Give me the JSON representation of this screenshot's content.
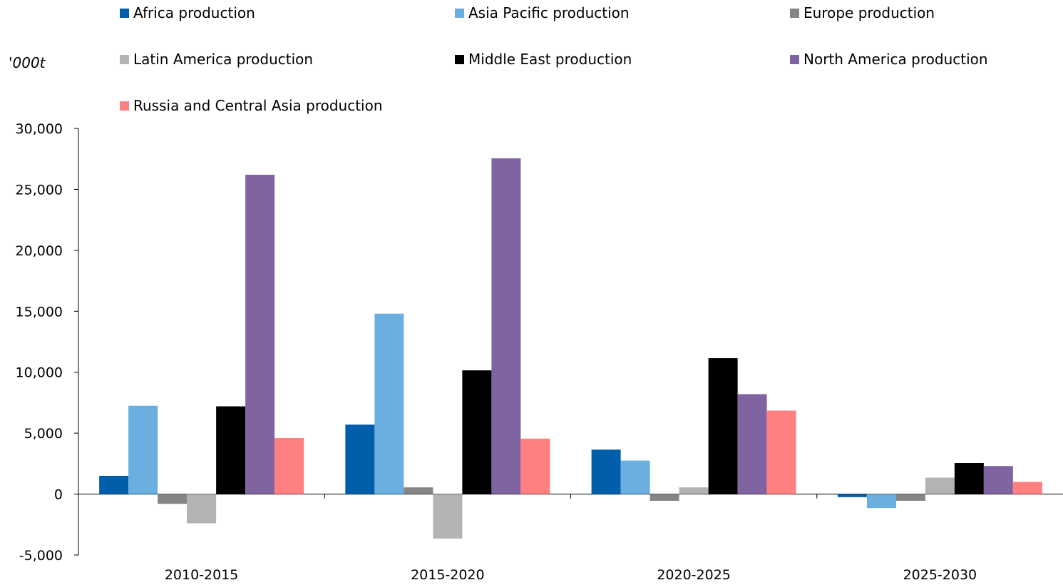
{
  "chart_data": {
    "type": "bar",
    "title": "",
    "xlabel": "",
    "ylabel": "'000t",
    "ylim": [
      -5000,
      30000
    ],
    "yticks": [
      -5000,
      0,
      5000,
      10000,
      15000,
      20000,
      25000,
      30000
    ],
    "ytick_labels": [
      "-5,000",
      "0",
      "5,000",
      "10,000",
      "15,000",
      "20,000",
      "25,000",
      "30,000"
    ],
    "grid": false,
    "legend_position": "top",
    "categories": [
      "2010-2015",
      "2015-2020",
      "2020-2025",
      "2025-2030"
    ],
    "series": [
      {
        "name": "Africa production",
        "color": "#005eaa",
        "values": [
          1500,
          5700,
          3650,
          -250
        ]
      },
      {
        "name": "Asia Pacific production",
        "color": "#6baee0",
        "values": [
          7250,
          14800,
          2750,
          -1150
        ]
      },
      {
        "name": "Europe production",
        "color": "#858585",
        "values": [
          -800,
          550,
          -550,
          -550
        ]
      },
      {
        "name": "Latin America production",
        "color": "#b3b3b3",
        "values": [
          -2400,
          -3650,
          550,
          1350
        ]
      },
      {
        "name": "Middle East production",
        "color": "#000000",
        "values": [
          7200,
          10150,
          11150,
          2550
        ]
      },
      {
        "name": "North America production",
        "color": "#8064a2",
        "values": [
          26200,
          27550,
          8200,
          2300
        ]
      },
      {
        "name": "Russia and Central Asia production",
        "color": "#ff8080",
        "values": [
          4600,
          4550,
          6850,
          1000
        ]
      }
    ]
  }
}
